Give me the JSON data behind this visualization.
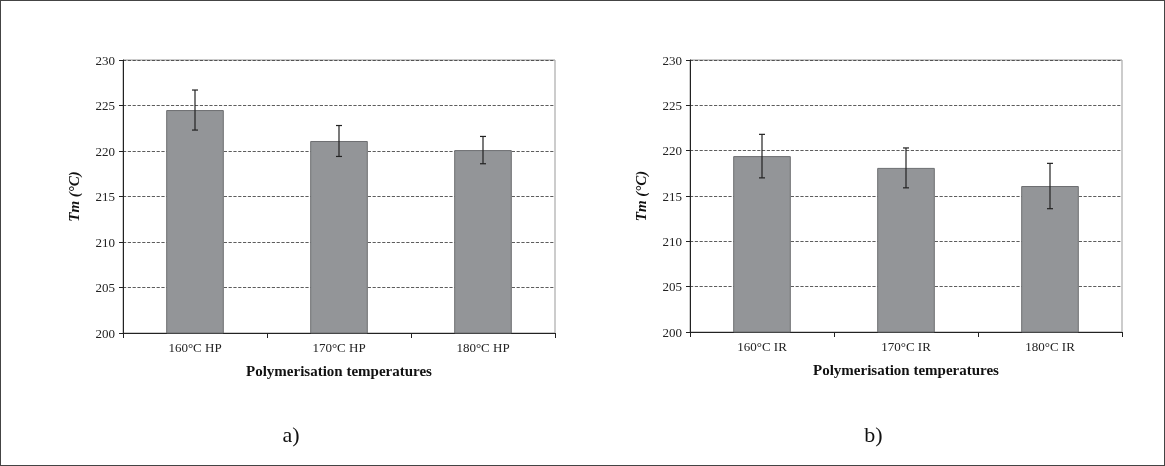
{
  "chart_data": [
    {
      "type": "bar",
      "categories": [
        "160°C HP",
        "170°C HP",
        "180°C HP"
      ],
      "values": [
        224.5,
        221.1,
        220.1
      ],
      "errors": [
        2.2,
        1.7,
        1.5
      ],
      "color": "#939598",
      "xlabel": "Polymerisation temperatures",
      "ylabel": "Tm (°C)",
      "ylim": [
        200,
        230
      ],
      "yticks": [
        200,
        205,
        210,
        215,
        220,
        225,
        230
      ],
      "grid": "y",
      "annotations": [
        "a)"
      ]
    },
    {
      "type": "bar",
      "categories": [
        "160°C IR",
        "170°C IR",
        "180°C IR"
      ],
      "values": [
        219.4,
        218.1,
        216.1
      ],
      "errors": [
        2.4,
        2.2,
        2.5
      ],
      "color": "#939598",
      "xlabel": "Polymerisation temperatures",
      "ylabel": "Tm (°C)",
      "ylim": [
        200,
        230
      ],
      "yticks": [
        200,
        205,
        210,
        215,
        220,
        225,
        230
      ],
      "grid": "y",
      "annotations": [
        "b)"
      ]
    }
  ]
}
